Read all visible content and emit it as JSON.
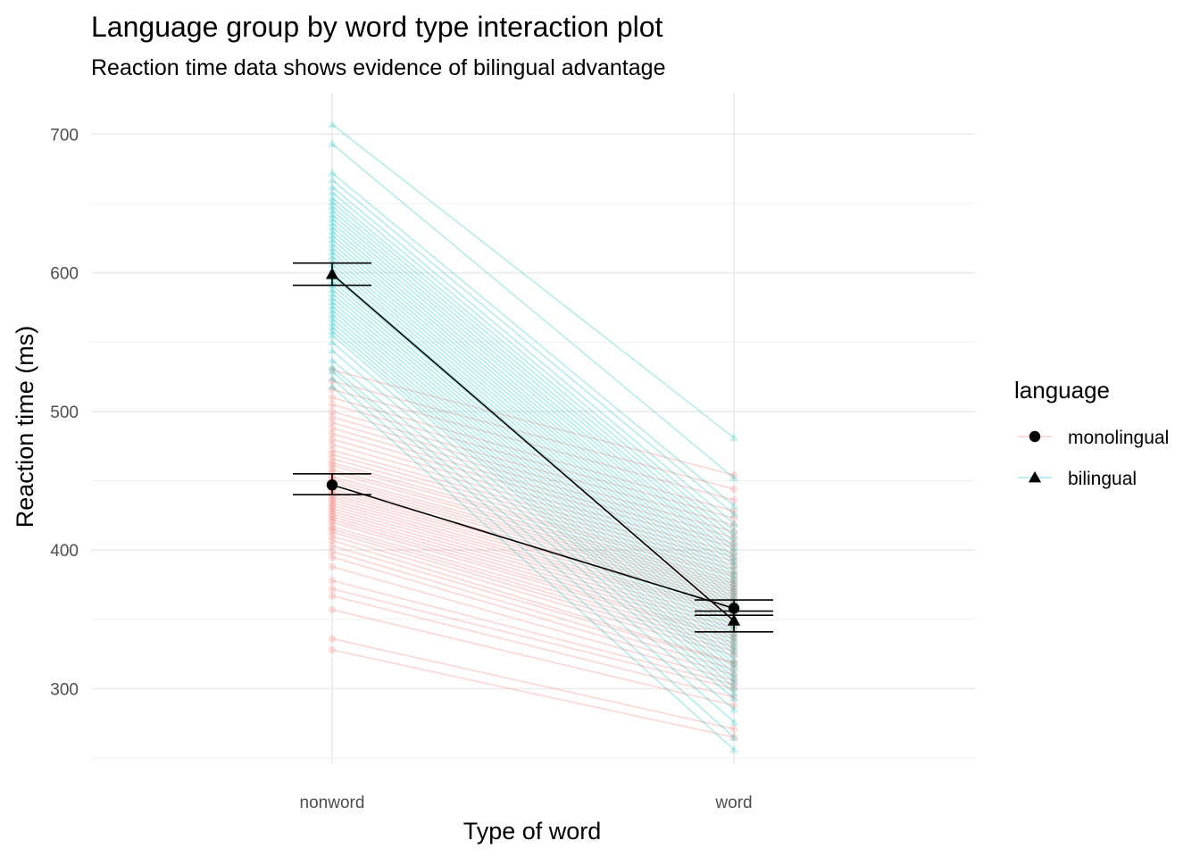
{
  "chart_data": {
    "type": "line",
    "title": "Language group by word type interaction plot",
    "subtitle": "Reaction time data shows evidence of bilingual advantage",
    "xlabel": "Type of word",
    "ylabel": "Reaction time (ms)",
    "categories": [
      "nonword",
      "word"
    ],
    "ylim": [
      245,
      712
    ],
    "yticks": [
      300,
      400,
      500,
      600,
      700
    ],
    "grid": true,
    "legend": {
      "title": "language",
      "position": "right",
      "entries": [
        {
          "name": "monolingual",
          "shape": "circle",
          "color": "#F8766D"
        },
        {
          "name": "bilingual",
          "shape": "triangle",
          "color": "#00BFC4"
        }
      ]
    },
    "summary": [
      {
        "name": "monolingual",
        "shape": "circle",
        "mean": [
          447,
          358
        ],
        "ci_low": [
          440,
          353
        ],
        "ci_high": [
          455,
          364
        ]
      },
      {
        "name": "bilingual",
        "shape": "triangle",
        "mean": [
          599,
          349
        ],
        "ci_low": [
          591,
          341
        ],
        "ci_high": [
          607,
          356
        ]
      }
    ],
    "participants": {
      "monolingual": {
        "color": "#F8766D",
        "shape": "circle",
        "pairs": [
          [
            328,
            265
          ],
          [
            336,
            271
          ],
          [
            357,
            288
          ],
          [
            367,
            294
          ],
          [
            372,
            300
          ],
          [
            378,
            303
          ],
          [
            388,
            306
          ],
          [
            395,
            310
          ],
          [
            399,
            314
          ],
          [
            403,
            318
          ],
          [
            407,
            319
          ],
          [
            410,
            324
          ],
          [
            413,
            327
          ],
          [
            415,
            330
          ],
          [
            417,
            333
          ],
          [
            420,
            336
          ],
          [
            422,
            338
          ],
          [
            424,
            341
          ],
          [
            426,
            344
          ],
          [
            428,
            347
          ],
          [
            430,
            350
          ],
          [
            432,
            353
          ],
          [
            434,
            355
          ],
          [
            436,
            357
          ],
          [
            438,
            360
          ],
          [
            440,
            362
          ],
          [
            442,
            364
          ],
          [
            444,
            366
          ],
          [
            447,
            368
          ],
          [
            449,
            370
          ],
          [
            451,
            372
          ],
          [
            453,
            374
          ],
          [
            456,
            376
          ],
          [
            458,
            378
          ],
          [
            461,
            381
          ],
          [
            463,
            383
          ],
          [
            466,
            386
          ],
          [
            469,
            389
          ],
          [
            472,
            392
          ],
          [
            476,
            395
          ],
          [
            480,
            398
          ],
          [
            484,
            402
          ],
          [
            488,
            405
          ],
          [
            492,
            409
          ],
          [
            496,
            413
          ],
          [
            500,
            418
          ],
          [
            505,
            423
          ],
          [
            510,
            428
          ],
          [
            516,
            436
          ],
          [
            522,
            444
          ],
          [
            530,
            454
          ]
        ]
      },
      "bilingual": {
        "color": "#00BFC4",
        "shape": "triangle",
        "pairs": [
          [
            518,
            256
          ],
          [
            524,
            265
          ],
          [
            529,
            276
          ],
          [
            532,
            285
          ],
          [
            537,
            293
          ],
          [
            544,
            297
          ],
          [
            550,
            301
          ],
          [
            555,
            305
          ],
          [
            558,
            308
          ],
          [
            561,
            311
          ],
          [
            564,
            315
          ],
          [
            567,
            318
          ],
          [
            570,
            321
          ],
          [
            573,
            325
          ],
          [
            576,
            328
          ],
          [
            579,
            331
          ],
          [
            582,
            334
          ],
          [
            585,
            337
          ],
          [
            588,
            340
          ],
          [
            591,
            343
          ],
          [
            594,
            346
          ],
          [
            597,
            349
          ],
          [
            600,
            352
          ],
          [
            603,
            355
          ],
          [
            606,
            358
          ],
          [
            609,
            361
          ],
          [
            612,
            364
          ],
          [
            615,
            367
          ],
          [
            618,
            370
          ],
          [
            621,
            373
          ],
          [
            624,
            376
          ],
          [
            627,
            379
          ],
          [
            630,
            382
          ],
          [
            633,
            385
          ],
          [
            636,
            389
          ],
          [
            639,
            392
          ],
          [
            642,
            395
          ],
          [
            645,
            399
          ],
          [
            648,
            402
          ],
          [
            651,
            406
          ],
          [
            654,
            410
          ],
          [
            658,
            414
          ],
          [
            662,
            419
          ],
          [
            667,
            426
          ],
          [
            672,
            432
          ],
          [
            693,
            452
          ],
          [
            707,
            481
          ]
        ]
      }
    }
  }
}
